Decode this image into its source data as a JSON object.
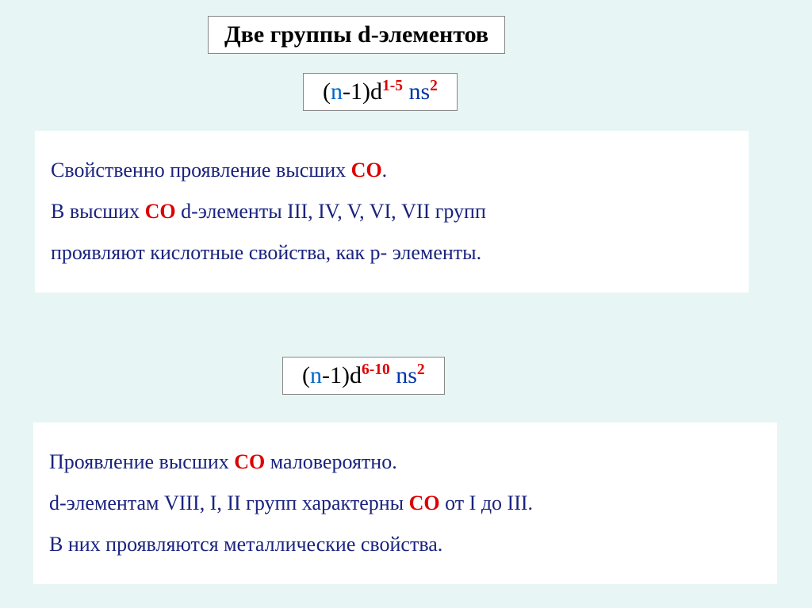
{
  "title": "Две группы d-элементов",
  "formula1": {
    "prefix": "(n-1)d",
    "sup1": "1-5",
    "mid": " ns",
    "sup2": "2"
  },
  "formula2": {
    "prefix": "(n-1)d",
    "sup1": "6-10",
    "mid": " ns",
    "sup2": "2"
  },
  "block1": {
    "line1_a": "Свойственно проявление высших ",
    "line1_b": "СО",
    "line1_c": ".",
    "line2_a": "В высших ",
    "line2_b": "СО",
    "line2_c": " d-элементы ІІІ, ІV, V, VІ, VІІ групп",
    "line3": " проявляют кислотные свойства,  как р- элементы."
  },
  "block2": {
    "line1_a": "Проявление высших ",
    "line1_b": "СО",
    "line1_c": " маловероятно.",
    "line2_a": " d-элементам  VІІІ, І, ІІ  групп характерны  ",
    "line2_b": "СО",
    "line2_c": "  от І до ІІІ.",
    "line3": "В них проявляются металлические свойства."
  },
  "colors": {
    "background": "#e8f5f5",
    "box_bg": "#ffffff",
    "text_blue": "#1a237e",
    "text_red": "#d00",
    "text_black": "#000",
    "border": "#888"
  },
  "fonts": {
    "title_size": 30,
    "formula_size": 30,
    "body_size": 26
  }
}
